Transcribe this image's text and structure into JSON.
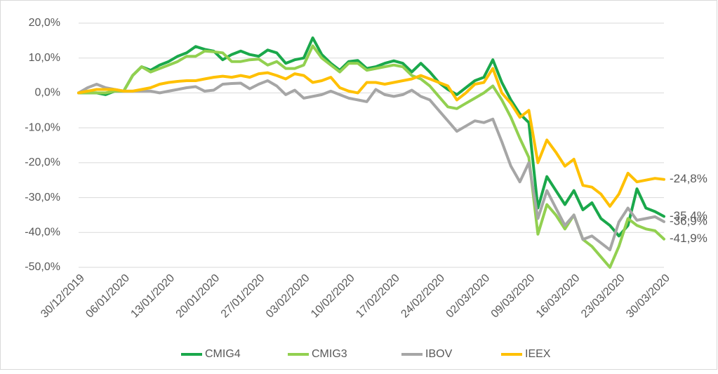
{
  "chart_data": {
    "type": "line",
    "categories": [
      "30/12/2019",
      null,
      null,
      null,
      null,
      "06/01/2020",
      null,
      null,
      null,
      null,
      "13/01/2020",
      null,
      null,
      null,
      null,
      "20/01/2020",
      null,
      null,
      null,
      null,
      "27/01/2020",
      null,
      null,
      null,
      null,
      "03/02/2020",
      null,
      null,
      null,
      null,
      "10/02/2020",
      null,
      null,
      null,
      null,
      "17/02/2020",
      null,
      null,
      null,
      null,
      "24/02/2020",
      null,
      null,
      null,
      null,
      "02/03/2020",
      null,
      null,
      null,
      null,
      "09/03/2020",
      null,
      null,
      null,
      null,
      "16/03/2020",
      null,
      null,
      null,
      null,
      "23/03/2020",
      null,
      null,
      null,
      null,
      "30/03/2020"
    ],
    "ylim": [
      -50,
      20
    ],
    "yticks": [
      {
        "value": -50,
        "label": "-50,0%"
      },
      {
        "value": -40,
        "label": "-40,0%"
      },
      {
        "value": -30,
        "label": "-30,0%"
      },
      {
        "value": -20,
        "label": "-20,0%"
      },
      {
        "value": -10,
        "label": "-10,0%"
      },
      {
        "value": 0,
        "label": "0,0%"
      },
      {
        "value": 10,
        "label": "10,0%"
      },
      {
        "value": 20,
        "label": "20,0%"
      }
    ],
    "grid": true,
    "legend": "bottom",
    "series": [
      {
        "name": "CMIG4",
        "color": "#1aa84b",
        "values": [
          0,
          0,
          0,
          -0.5,
          0.5,
          0.5,
          5,
          7.5,
          6.5,
          8,
          9,
          10.5,
          11.5,
          13.3,
          12.5,
          12,
          9.5,
          11,
          12,
          11,
          10.5,
          12.3,
          11.5,
          8.5,
          9.5,
          10,
          15.8,
          11,
          8.5,
          6.5,
          9,
          9.3,
          7,
          7.5,
          8.5,
          9.2,
          8.5,
          6,
          8.5,
          6,
          3,
          1,
          -0.5,
          1.5,
          3.5,
          4.5,
          9.5,
          3,
          -2,
          -6,
          -8.5,
          -33,
          -24,
          -28,
          -32,
          -28,
          -33.5,
          -31.5,
          -36,
          -38,
          -41,
          -38,
          -27.5,
          -33,
          -34,
          -35.4
        ],
        "value_labels": [
          null,
          null,
          null,
          null,
          null,
          null,
          null,
          null,
          null,
          null,
          null,
          null,
          null,
          null,
          null,
          null,
          null,
          null,
          null,
          null,
          null,
          null,
          null,
          null,
          null,
          null,
          null,
          null,
          null,
          null,
          null,
          null,
          null,
          null,
          null,
          null,
          null,
          null,
          null,
          null,
          null,
          null,
          null,
          null,
          null,
          null,
          null,
          null,
          null,
          null,
          null,
          null,
          null,
          null,
          null,
          null,
          null,
          null,
          null,
          null,
          null,
          null,
          null,
          null,
          null,
          "-35,4%"
        ]
      },
      {
        "name": "CMIG3",
        "color": "#92d050",
        "values": [
          0,
          0,
          0,
          0,
          0.5,
          0.5,
          5,
          7.5,
          6,
          7,
          8,
          9,
          10.5,
          10.5,
          12,
          11.8,
          11.5,
          9,
          9,
          9.5,
          9.7,
          8,
          9,
          7,
          7,
          8,
          13.5,
          10,
          8,
          6,
          8.5,
          8.5,
          6.5,
          7,
          7.5,
          8,
          7.5,
          5,
          4,
          2,
          -1,
          -4,
          -4.5,
          -3,
          -1.5,
          0,
          2,
          -2,
          -7,
          -13,
          -18.5,
          -40.5,
          -32,
          -35,
          -39,
          -35,
          -42,
          -44,
          -47,
          -50,
          -44,
          -36,
          -38,
          -39,
          -39.5,
          -41.9
        ],
        "value_labels": [
          null,
          null,
          null,
          null,
          null,
          null,
          null,
          null,
          null,
          null,
          null,
          null,
          null,
          null,
          null,
          null,
          null,
          null,
          null,
          null,
          null,
          null,
          null,
          null,
          null,
          null,
          null,
          null,
          null,
          null,
          null,
          null,
          null,
          null,
          null,
          null,
          null,
          null,
          null,
          null,
          null,
          null,
          null,
          null,
          null,
          null,
          null,
          null,
          null,
          null,
          null,
          null,
          null,
          null,
          null,
          null,
          null,
          null,
          null,
          null,
          null,
          null,
          null,
          null,
          null,
          "-41,9%"
        ]
      },
      {
        "name": "IBOV",
        "color": "#a6a6a6",
        "values": [
          0,
          1.5,
          2.5,
          1.5,
          1,
          0.5,
          0.5,
          0.5,
          0.5,
          0,
          0.5,
          1,
          1.5,
          1.8,
          0.5,
          0.8,
          2.5,
          2.7,
          2.8,
          1.2,
          2.5,
          3.5,
          2,
          -0.5,
          0.8,
          -1.5,
          -1,
          -0.5,
          0.5,
          -0.5,
          -1.5,
          -2,
          -2.5,
          1,
          -0.5,
          -1,
          -0.5,
          0.8,
          -1,
          -2,
          -5,
          -8,
          -11,
          -9.5,
          -8,
          -8.5,
          -7.5,
          -14,
          -21,
          -25.5,
          -20,
          -36,
          -28,
          -33,
          -38,
          -35,
          -42,
          -41,
          -43,
          -45,
          -37,
          -33,
          -36.5,
          -36,
          -35.5,
          -36.9
        ],
        "value_labels": [
          null,
          null,
          null,
          null,
          null,
          null,
          null,
          null,
          null,
          null,
          null,
          null,
          null,
          null,
          null,
          null,
          null,
          null,
          null,
          null,
          null,
          null,
          null,
          null,
          null,
          null,
          null,
          null,
          null,
          null,
          null,
          null,
          null,
          null,
          null,
          null,
          null,
          null,
          null,
          null,
          null,
          null,
          null,
          null,
          null,
          null,
          null,
          null,
          null,
          null,
          null,
          null,
          null,
          null,
          null,
          null,
          null,
          null,
          null,
          null,
          null,
          null,
          null,
          null,
          null,
          "-36,9%"
        ]
      },
      {
        "name": "IEEX",
        "color": "#ffc000",
        "values": [
          0,
          0.5,
          1,
          1,
          1,
          0.5,
          0.5,
          1,
          1.5,
          2.5,
          3,
          3.3,
          3.5,
          3.5,
          4,
          4.5,
          4.8,
          4.5,
          5,
          4.5,
          5.5,
          5.8,
          5,
          4,
          5.5,
          5,
          3,
          3.5,
          4.5,
          1.5,
          0.5,
          0,
          3,
          3,
          2.5,
          3,
          3.5,
          4,
          5,
          4,
          3,
          2,
          -2,
          0,
          2.5,
          3,
          7,
          0,
          -3,
          -7,
          -5,
          -20,
          -13.5,
          -17,
          -21,
          -19,
          -26.5,
          -27,
          -29,
          -32.5,
          -29,
          -23,
          -25.5,
          -25,
          -24.5,
          -24.8
        ],
        "value_labels": [
          null,
          null,
          null,
          null,
          null,
          null,
          null,
          null,
          null,
          null,
          null,
          null,
          null,
          null,
          null,
          null,
          null,
          null,
          null,
          null,
          null,
          null,
          null,
          null,
          null,
          null,
          null,
          null,
          null,
          null,
          null,
          null,
          null,
          null,
          null,
          null,
          null,
          null,
          null,
          null,
          null,
          null,
          null,
          null,
          null,
          null,
          null,
          null,
          null,
          null,
          null,
          null,
          null,
          null,
          null,
          null,
          null,
          null,
          null,
          null,
          null,
          null,
          null,
          null,
          null,
          "-24,8%"
        ]
      }
    ]
  }
}
